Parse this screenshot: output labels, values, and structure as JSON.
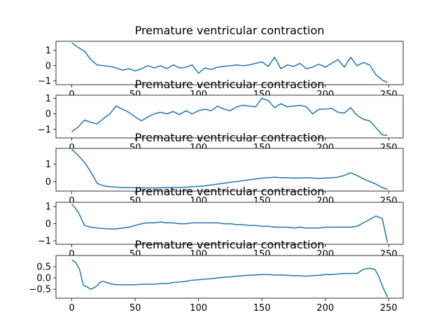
{
  "chart_data": [
    {
      "type": "line",
      "title": "Premature ventricular contraction",
      "xlim": [
        -12.45,
        261.45
      ],
      "ylim": [
        -1.25,
        1.6
      ],
      "yticks": [
        -1,
        0,
        1
      ],
      "xticks": [
        0,
        50,
        100,
        150,
        200,
        250
      ],
      "color": "#1f77b4",
      "series": [
        {
          "x": [
            0,
            5,
            10,
            15,
            20,
            25,
            30,
            35,
            40,
            45,
            50,
            55,
            60,
            65,
            70,
            75,
            80,
            85,
            90,
            95,
            100,
            105,
            110,
            115,
            120,
            125,
            130,
            135,
            140,
            145,
            150,
            155,
            160,
            165,
            170,
            175,
            180,
            185,
            190,
            195,
            200,
            205,
            210,
            215,
            220,
            225,
            230,
            235,
            240,
            245,
            249
          ],
          "values": [
            1.5,
            1.2,
            0.95,
            0.4,
            0.05,
            0.0,
            -0.05,
            -0.15,
            -0.3,
            -0.2,
            -0.35,
            -0.2,
            0.0,
            -0.15,
            0.0,
            -0.2,
            0.05,
            -0.15,
            -0.1,
            0.05,
            -0.5,
            -0.15,
            -0.25,
            -0.1,
            -0.05,
            0.0,
            0.05,
            0.0,
            0.05,
            0.15,
            0.25,
            -0.05,
            0.55,
            -0.2,
            0.05,
            -0.05,
            0.15,
            -0.2,
            -0.1,
            0.1,
            -0.1,
            0.15,
            0.4,
            -0.1,
            0.55,
            0.0,
            0.2,
            0.05,
            -0.6,
            -0.95,
            -1.1
          ]
        }
      ]
    },
    {
      "type": "line",
      "title": "Premature ventricular contraction",
      "xlim": [
        -12.45,
        261.45
      ],
      "ylim": [
        -1.55,
        1.2
      ],
      "yticks": [
        -1,
        0,
        1
      ],
      "xticks": [
        0,
        50,
        100,
        150,
        200,
        250
      ],
      "color": "#1f77b4",
      "series": [
        {
          "x": [
            0,
            5,
            10,
            15,
            20,
            25,
            30,
            35,
            40,
            45,
            50,
            55,
            60,
            65,
            70,
            75,
            80,
            85,
            90,
            95,
            100,
            105,
            110,
            115,
            120,
            125,
            130,
            135,
            140,
            145,
            150,
            155,
            160,
            165,
            170,
            175,
            180,
            185,
            190,
            195,
            200,
            205,
            210,
            215,
            220,
            225,
            230,
            235,
            240,
            245,
            249
          ],
          "values": [
            -1.15,
            -0.85,
            -0.4,
            -0.55,
            -0.65,
            -0.3,
            0.0,
            0.5,
            0.3,
            0.1,
            -0.2,
            -0.45,
            -0.2,
            0.0,
            0.1,
            0.0,
            0.15,
            -0.05,
            0.2,
            0.0,
            0.2,
            0.3,
            0.2,
            0.5,
            0.3,
            0.2,
            0.45,
            0.55,
            0.5,
            0.45,
            1.0,
            0.85,
            0.4,
            0.65,
            0.45,
            0.5,
            0.55,
            0.45,
            0.0,
            0.3,
            0.3,
            0.35,
            0.1,
            0.05,
            0.4,
            -0.1,
            -0.35,
            -0.45,
            -0.9,
            -1.35,
            -1.4
          ]
        }
      ]
    },
    {
      "type": "line",
      "title": "Premature ventricular contraction",
      "xlim": [
        -12.45,
        261.45
      ],
      "ylim": [
        -0.55,
        1.9
      ],
      "yticks": [
        0,
        1
      ],
      "xticks": [
        0,
        50,
        100,
        150,
        200,
        250
      ],
      "color": "#1f77b4",
      "series": [
        {
          "x": [
            0,
            5,
            10,
            15,
            20,
            25,
            30,
            35,
            40,
            45,
            50,
            55,
            60,
            65,
            70,
            75,
            80,
            85,
            90,
            95,
            100,
            105,
            110,
            115,
            120,
            125,
            130,
            135,
            140,
            145,
            150,
            155,
            160,
            165,
            170,
            175,
            180,
            185,
            190,
            195,
            200,
            205,
            210,
            215,
            220,
            225,
            230,
            235,
            240,
            245,
            249
          ],
          "values": [
            1.85,
            1.5,
            1.1,
            0.55,
            -0.1,
            -0.25,
            -0.3,
            -0.32,
            -0.35,
            -0.35,
            -0.36,
            -0.36,
            -0.37,
            -0.37,
            -0.36,
            -0.35,
            -0.35,
            -0.34,
            -0.33,
            -0.3,
            -0.28,
            -0.25,
            -0.2,
            -0.15,
            -0.1,
            -0.05,
            0.0,
            0.05,
            0.1,
            0.15,
            0.2,
            0.22,
            0.25,
            0.22,
            0.22,
            0.2,
            0.2,
            0.22,
            0.2,
            0.18,
            0.2,
            0.22,
            0.25,
            0.35,
            0.5,
            0.35,
            0.15,
            0.0,
            -0.15,
            -0.35,
            -0.45
          ]
        }
      ]
    },
    {
      "type": "line",
      "title": "Premature ventricular contraction",
      "xlim": [
        -12.45,
        261.45
      ],
      "ylim": [
        -1.2,
        1.25
      ],
      "yticks": [
        -1,
        0,
        1
      ],
      "xticks": [
        0,
        50,
        100,
        150,
        200,
        250
      ],
      "color": "#1f77b4",
      "series": [
        {
          "x": [
            0,
            5,
            10,
            15,
            20,
            25,
            30,
            35,
            40,
            45,
            50,
            55,
            60,
            65,
            70,
            75,
            80,
            85,
            90,
            95,
            100,
            105,
            110,
            115,
            120,
            125,
            130,
            135,
            140,
            145,
            150,
            155,
            160,
            165,
            170,
            175,
            180,
            185,
            190,
            195,
            200,
            205,
            210,
            215,
            220,
            225,
            230,
            235,
            240,
            245,
            249
          ],
          "values": [
            1.15,
            0.7,
            -0.1,
            -0.2,
            -0.25,
            -0.28,
            -0.3,
            -0.3,
            -0.25,
            -0.2,
            -0.1,
            0.0,
            0.05,
            0.05,
            0.1,
            0.05,
            0.05,
            0.0,
            0.0,
            0.05,
            0.05,
            0.05,
            0.05,
            0.05,
            0.0,
            0.0,
            -0.05,
            -0.05,
            -0.1,
            -0.1,
            -0.15,
            -0.15,
            -0.2,
            -0.2,
            -0.2,
            -0.25,
            -0.2,
            -0.25,
            -0.25,
            -0.25,
            -0.2,
            -0.2,
            -0.2,
            -0.2,
            -0.2,
            -0.15,
            0.05,
            0.25,
            0.45,
            0.3,
            -1.1
          ]
        }
      ]
    },
    {
      "type": "line",
      "title": "Premature ventricular contraction",
      "xlim": [
        -12.45,
        261.45
      ],
      "ylim": [
        -0.9,
        1.0
      ],
      "yticks": [
        -0.5,
        0.0,
        0.5
      ],
      "xticks": [
        0,
        50,
        100,
        150,
        200,
        250
      ],
      "color": "#1f77b4",
      "series": [
        {
          "x": [
            0,
            3,
            6,
            9,
            12,
            15,
            17,
            20,
            22,
            25,
            30,
            35,
            40,
            45,
            50,
            55,
            60,
            65,
            70,
            75,
            80,
            85,
            90,
            95,
            100,
            105,
            110,
            115,
            120,
            125,
            130,
            135,
            140,
            145,
            150,
            155,
            160,
            165,
            170,
            175,
            180,
            185,
            190,
            195,
            200,
            205,
            210,
            215,
            220,
            225,
            230,
            233,
            236,
            239,
            242,
            245,
            249
          ],
          "values": [
            0.8,
            0.7,
            0.4,
            -0.3,
            -0.4,
            -0.5,
            -0.45,
            -0.35,
            -0.2,
            -0.15,
            -0.25,
            -0.3,
            -0.3,
            -0.3,
            -0.3,
            -0.28,
            -0.28,
            -0.28,
            -0.25,
            -0.25,
            -0.2,
            -0.18,
            -0.15,
            -0.1,
            -0.08,
            -0.05,
            -0.03,
            0.0,
            0.03,
            0.05,
            0.08,
            0.1,
            0.12,
            0.13,
            0.15,
            0.15,
            0.13,
            0.13,
            0.12,
            0.1,
            0.1,
            0.08,
            0.1,
            0.12,
            0.15,
            0.15,
            0.18,
            0.2,
            0.2,
            0.2,
            0.38,
            0.42,
            0.42,
            0.38,
            0.1,
            -0.35,
            -0.85
          ]
        }
      ]
    }
  ]
}
